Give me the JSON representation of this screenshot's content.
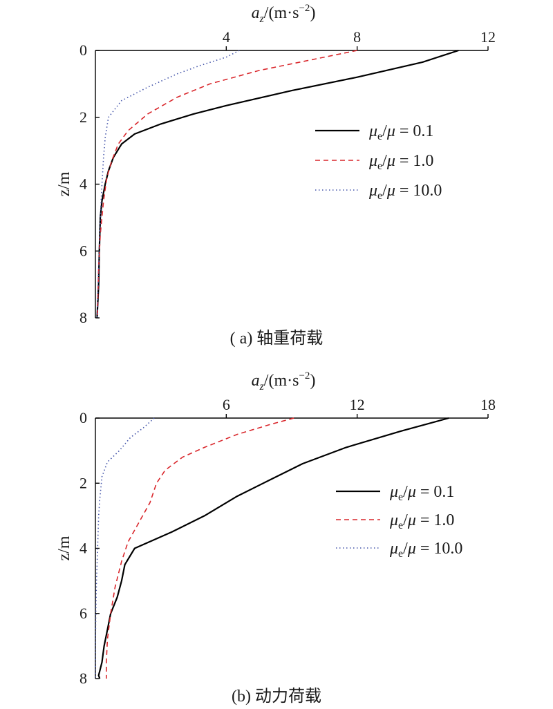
{
  "chart_data": [
    {
      "type": "line",
      "xlabel": "a_z/(m·s^-2)",
      "ylabel": "z/m",
      "xlim": [
        0,
        12
      ],
      "ylim": [
        0,
        8
      ],
      "y_inverted": true,
      "x_axis_position": "top",
      "xticks": [
        "4",
        "8",
        "12"
      ],
      "yticks": [
        "0",
        "2",
        "4",
        "6",
        "8"
      ],
      "caption": "( a) 轴重荷载",
      "legend_position": "center-right",
      "series": [
        {
          "name": "μe/μ = 0.1",
          "style": "solid",
          "color": "#000000",
          "points": [
            [
              11.1,
              0
            ],
            [
              10.0,
              0.35
            ],
            [
              8.0,
              0.8
            ],
            [
              6.0,
              1.2
            ],
            [
              4.0,
              1.65
            ],
            [
              3.0,
              1.9
            ],
            [
              2.0,
              2.2
            ],
            [
              1.2,
              2.5
            ],
            [
              0.8,
              2.8
            ],
            [
              0.55,
              3.2
            ],
            [
              0.4,
              3.6
            ],
            [
              0.3,
              4.0
            ],
            [
              0.2,
              4.5
            ],
            [
              0.15,
              5.0
            ],
            [
              0.12,
              6.0
            ],
            [
              0.1,
              7.0
            ],
            [
              0.05,
              8.0
            ]
          ]
        },
        {
          "name": "μe/μ = 1.0",
          "style": "dashed",
          "color": "#d9262b",
          "points": [
            [
              8.0,
              0
            ],
            [
              6.5,
              0.3
            ],
            [
              5.0,
              0.6
            ],
            [
              3.5,
              1.0
            ],
            [
              2.5,
              1.4
            ],
            [
              1.6,
              1.9
            ],
            [
              1.0,
              2.4
            ],
            [
              0.7,
              2.8
            ],
            [
              0.5,
              3.3
            ],
            [
              0.35,
              3.8
            ],
            [
              0.25,
              4.5
            ],
            [
              0.15,
              5.5
            ],
            [
              0.1,
              6.5
            ],
            [
              0.06,
              8.0
            ]
          ]
        },
        {
          "name": "μe/μ = 10.0",
          "style": "dotted",
          "color": "#4455aa",
          "points": [
            [
              4.4,
              0
            ],
            [
              4.0,
              0.2
            ],
            [
              3.2,
              0.45
            ],
            [
              2.5,
              0.7
            ],
            [
              1.6,
              1.1
            ],
            [
              0.8,
              1.5
            ],
            [
              0.4,
              2.0
            ],
            [
              0.3,
              2.6
            ],
            [
              0.25,
              3.2
            ],
            [
              0.2,
              4.0
            ],
            [
              0.15,
              5.0
            ],
            [
              0.1,
              6.5
            ],
            [
              0.05,
              8.0
            ]
          ]
        }
      ]
    },
    {
      "type": "line",
      "xlabel": "a_z/(m·s^-2)",
      "ylabel": "z/m",
      "xlim": [
        0,
        18
      ],
      "ylim": [
        0,
        8
      ],
      "y_inverted": true,
      "x_axis_position": "top",
      "xticks": [
        "6",
        "12",
        "18"
      ],
      "yticks": [
        "0",
        "2",
        "4",
        "6",
        "8"
      ],
      "caption": "(b) 动力荷载",
      "legend_position": "center-right",
      "series": [
        {
          "name": "μe/μ = 0.1",
          "style": "solid",
          "color": "#000000",
          "points": [
            [
              16.2,
              0
            ],
            [
              14.0,
              0.4
            ],
            [
              11.5,
              0.9
            ],
            [
              9.5,
              1.4
            ],
            [
              8.0,
              1.9
            ],
            [
              6.5,
              2.4
            ],
            [
              5.0,
              3.0
            ],
            [
              3.5,
              3.5
            ],
            [
              1.8,
              4.0
            ],
            [
              1.35,
              4.5
            ],
            [
              1.2,
              5.0
            ],
            [
              1.0,
              5.5
            ],
            [
              0.7,
              6.0
            ],
            [
              0.55,
              6.5
            ],
            [
              0.4,
              7.0
            ],
            [
              0.3,
              7.5
            ],
            [
              0.15,
              7.9
            ],
            [
              0.2,
              8.0
            ]
          ]
        },
        {
          "name": "μe/μ = 1.0",
          "style": "dashed",
          "color": "#d9262b",
          "points": [
            [
              9.1,
              0
            ],
            [
              8.0,
              0.2
            ],
            [
              6.5,
              0.5
            ],
            [
              5.0,
              0.9
            ],
            [
              4.0,
              1.2
            ],
            [
              3.2,
              1.6
            ],
            [
              2.8,
              2.0
            ],
            [
              2.5,
              2.6
            ],
            [
              2.0,
              3.2
            ],
            [
              1.5,
              3.8
            ],
            [
              1.2,
              4.4
            ],
            [
              0.9,
              5.2
            ],
            [
              0.7,
              6.0
            ],
            [
              0.55,
              6.8
            ],
            [
              0.5,
              7.5
            ],
            [
              0.5,
              8.0
            ]
          ]
        },
        {
          "name": "μe/μ = 10.0",
          "style": "dotted",
          "color": "#4455aa",
          "points": [
            [
              2.7,
              0
            ],
            [
              2.2,
              0.3
            ],
            [
              1.6,
              0.6
            ],
            [
              1.1,
              1.0
            ],
            [
              0.55,
              1.35
            ],
            [
              0.3,
              1.8
            ],
            [
              0.2,
              2.5
            ],
            [
              0.15,
              3.0
            ],
            [
              0.1,
              4.0
            ],
            [
              0.05,
              5.0
            ],
            [
              0.02,
              6.0
            ],
            [
              0.0,
              7.0
            ],
            [
              0.0,
              8.0
            ]
          ]
        }
      ]
    }
  ]
}
